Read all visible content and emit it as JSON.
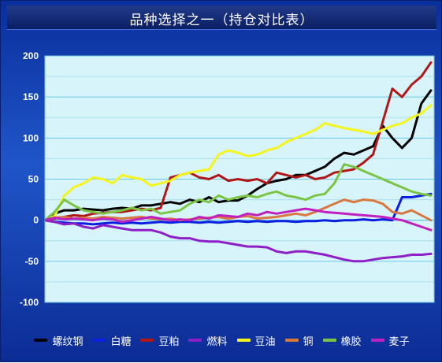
{
  "title": "品种选择之一（持仓对比表）",
  "chart_data": {
    "type": "line",
    "title": "品种选择之一（持仓对比表）",
    "xlabel": "",
    "ylabel": "",
    "ylim": [
      -100,
      200
    ],
    "yticks": [
      200,
      150,
      100,
      50,
      0,
      -50,
      -100
    ],
    "grid": true,
    "legend_position": "bottom",
    "x": [
      0,
      1,
      2,
      3,
      4,
      5,
      6,
      7,
      8,
      9,
      10,
      11,
      12,
      13,
      14,
      15,
      16,
      17,
      18,
      19,
      20,
      21,
      22,
      23,
      24,
      25,
      26,
      27,
      28,
      29,
      30,
      31,
      32,
      33,
      34,
      35,
      36,
      37,
      38,
      39,
      40
    ],
    "series": [
      {
        "name": "螺纹钢",
        "color": "#000000",
        "values": [
          0,
          8,
          12,
          12,
          14,
          13,
          12,
          14,
          15,
          14,
          18,
          18,
          20,
          22,
          20,
          25,
          22,
          28,
          22,
          24,
          24,
          30,
          38,
          45,
          48,
          50,
          55,
          55,
          60,
          65,
          75,
          82,
          80,
          85,
          90,
          115,
          100,
          88,
          100,
          142,
          158
        ]
      },
      {
        "name": "白糖",
        "color": "#0b1fe0",
        "values": [
          0,
          -2,
          -3,
          -4,
          -4,
          -5,
          -4,
          -3,
          -4,
          -3,
          -4,
          -3,
          -2,
          -3,
          -2,
          -2,
          -3,
          -2,
          -3,
          -2,
          -1,
          -2,
          -1,
          -2,
          -1,
          -1,
          -2,
          -1,
          -1,
          0,
          -1,
          0,
          0,
          1,
          0,
          1,
          0,
          28,
          28,
          30,
          32
        ]
      },
      {
        "name": "豆粕",
        "color": "#b01818",
        "values": [
          0,
          2,
          4,
          6,
          5,
          8,
          9,
          10,
          10,
          12,
          14,
          12,
          15,
          52,
          55,
          58,
          52,
          50,
          55,
          48,
          50,
          48,
          50,
          45,
          58,
          55,
          52,
          55,
          50,
          52,
          58,
          60,
          62,
          70,
          80,
          120,
          160,
          150,
          165,
          175,
          192
        ]
      },
      {
        "name": "燃料",
        "color": "#8e1ec8",
        "values": [
          0,
          -2,
          -5,
          -4,
          -8,
          -10,
          -6,
          -8,
          -10,
          -12,
          -12,
          -12,
          -15,
          -20,
          -22,
          -22,
          -25,
          -26,
          -26,
          -28,
          -30,
          -32,
          -32,
          -33,
          -38,
          -40,
          -38,
          -38,
          -40,
          -42,
          -45,
          -48,
          -50,
          -50,
          -48,
          -46,
          -45,
          -44,
          -42,
          -42,
          -41
        ]
      },
      {
        "name": "豆油",
        "color": "#f5f51e",
        "values": [
          0,
          5,
          30,
          40,
          45,
          52,
          50,
          45,
          55,
          52,
          50,
          42,
          45,
          48,
          55,
          58,
          60,
          62,
          80,
          85,
          82,
          78,
          80,
          85,
          88,
          95,
          100,
          105,
          110,
          118,
          115,
          112,
          110,
          108,
          105,
          110,
          115,
          118,
          125,
          130,
          140
        ]
      },
      {
        "name": "铜",
        "color": "#d87840",
        "values": [
          0,
          3,
          4,
          2,
          3,
          2,
          4,
          3,
          2,
          3,
          4,
          2,
          1,
          2,
          0,
          1,
          2,
          3,
          4,
          2,
          4,
          5,
          2,
          3,
          4,
          6,
          8,
          6,
          10,
          15,
          20,
          25,
          22,
          25,
          24,
          20,
          10,
          8,
          12,
          6,
          0
        ]
      },
      {
        "name": "橡胶",
        "color": "#7ac544",
        "values": [
          0,
          10,
          25,
          18,
          12,
          10,
          8,
          10,
          12,
          15,
          12,
          14,
          8,
          10,
          12,
          20,
          25,
          22,
          30,
          25,
          28,
          30,
          28,
          32,
          35,
          30,
          28,
          25,
          30,
          32,
          45,
          68,
          65,
          60,
          55,
          50,
          45,
          40,
          35,
          32,
          30
        ]
      },
      {
        "name": "麦子",
        "color": "#c020c0",
        "values": [
          0,
          3,
          1,
          2,
          1,
          0,
          2,
          1,
          -2,
          0,
          2,
          4,
          2,
          0,
          1,
          0,
          4,
          2,
          6,
          5,
          4,
          8,
          6,
          10,
          8,
          10,
          12,
          14,
          12,
          10,
          9,
          8,
          7,
          6,
          5,
          4,
          2,
          0,
          -4,
          -8,
          -12
        ]
      }
    ]
  }
}
